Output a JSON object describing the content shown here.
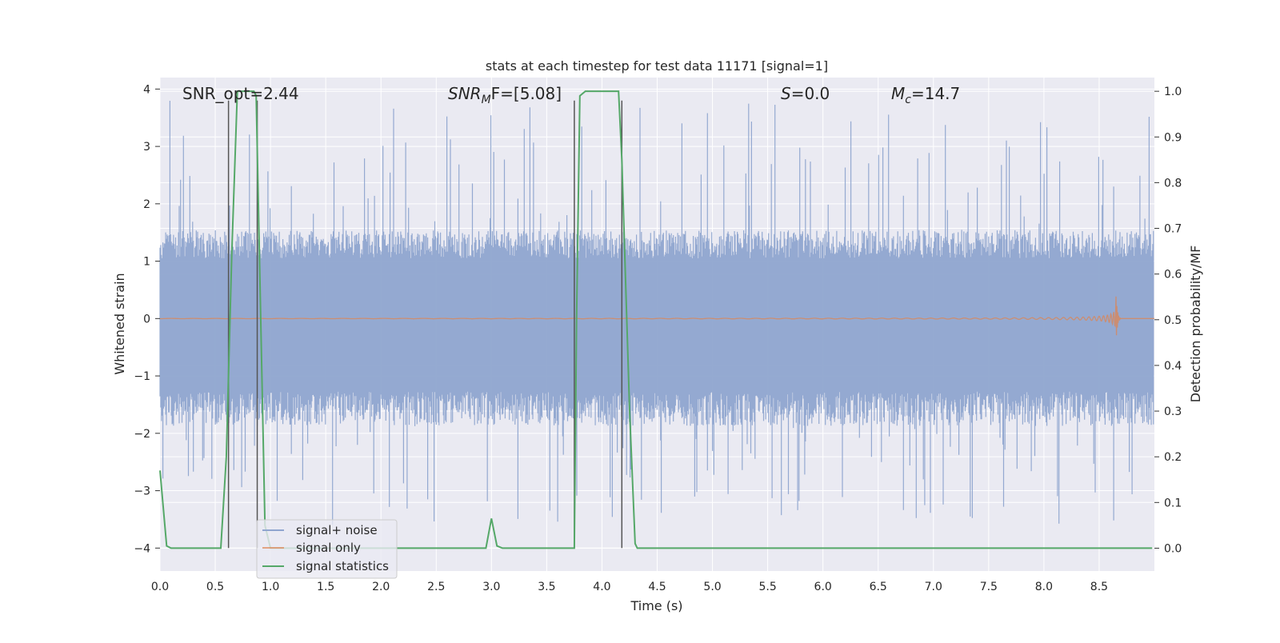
{
  "chart_data": {
    "type": "line",
    "title": "stats at each timestep for test data 11171 [signal=1]",
    "xlabel": "Time (s)",
    "ylabel": "Whitened strain",
    "ylabel_right": "Detection probability/MF",
    "xlim": [
      0.0,
      9.0
    ],
    "ylim": [
      -4.4,
      4.2
    ],
    "ylim_right": [
      -0.05,
      1.03
    ],
    "x_ticks": [
      "0.0",
      "0.5",
      "1.0",
      "1.5",
      "2.0",
      "2.5",
      "3.0",
      "3.5",
      "4.0",
      "4.5",
      "5.0",
      "5.5",
      "6.0",
      "6.5",
      "7.0",
      "7.5",
      "8.0",
      "8.5"
    ],
    "y_ticks": [
      "4",
      "3",
      "2",
      "1",
      "0",
      "−1",
      "−2",
      "−3",
      "−4"
    ],
    "y_ticks_right": [
      "1.0",
      "0.9",
      "0.8",
      "0.7",
      "0.6",
      "0.5",
      "0.4",
      "0.3",
      "0.2",
      "0.1",
      "0.0"
    ],
    "grid": true,
    "legend_position": "lower-left",
    "annotations": {
      "snr_opt": "SNR_opt=2.44",
      "snr_mf_main": "SNR",
      "snr_mf_sub": "M",
      "snr_mf_rest": "F=[5.08]",
      "s_main": "S",
      "s_rest": "=0.0",
      "mc_main": "M",
      "mc_sub": "c",
      "mc_rest": "=14.7"
    },
    "series": [
      {
        "name": "signal+ noise",
        "color": "#8fa5cf",
        "description_level": "noise envelope: dense band mostly within ±1.7 with spikes up to ~3.8 and down to ~-3.6",
        "envelope": {
          "band": [
            -1.7,
            1.4
          ],
          "max_peak": 3.8,
          "min_peak": -3.6
        }
      },
      {
        "name": "signal only",
        "color": "#dd8452",
        "chirp": {
          "start_x": 0.0,
          "end_x": 8.65,
          "peak_amplitude": 0.5,
          "ringdown_end_x": 8.7
        }
      },
      {
        "name": "signal statistics",
        "axis": "right",
        "color": "#55a868",
        "x": [
          0.0,
          0.06,
          0.1,
          0.15,
          0.55,
          0.6,
          0.65,
          0.7,
          0.75,
          0.85,
          0.87,
          0.92,
          0.95,
          1.0,
          2.95,
          3.0,
          3.05,
          3.1,
          3.7,
          3.75,
          3.77,
          3.8,
          3.85,
          4.15,
          4.18,
          4.25,
          4.3,
          4.32,
          8.98
        ],
        "values": [
          0.17,
          0.005,
          0.0,
          0.0,
          0.0,
          0.2,
          0.65,
          1.0,
          1.0,
          1.0,
          0.99,
          0.4,
          0.05,
          0.0,
          0.0,
          0.065,
          0.005,
          0.0,
          0.0,
          0.0,
          0.5,
          0.99,
          1.0,
          1.0,
          0.85,
          0.3,
          0.01,
          0.0,
          0.0
        ]
      }
    ],
    "vertical_markers": [
      {
        "x": 0.62,
        "y_top": 3.8,
        "y_bottom": -4.0,
        "color": "#555555"
      },
      {
        "x": 0.88,
        "y_top": 3.8,
        "y_bottom": -4.0,
        "color": "#555555"
      },
      {
        "x": 3.75,
        "y_top": 3.8,
        "y_bottom": -4.0,
        "color": "#555555"
      },
      {
        "x": 4.18,
        "y_top": 3.8,
        "y_bottom": -4.0,
        "color": "#555555"
      }
    ],
    "colors": {
      "plot_bg": "#eaeaf2",
      "grid": "#ffffff",
      "noise": "#8fa5cf",
      "signal": "#dd8452",
      "stats": "#55a868"
    }
  }
}
